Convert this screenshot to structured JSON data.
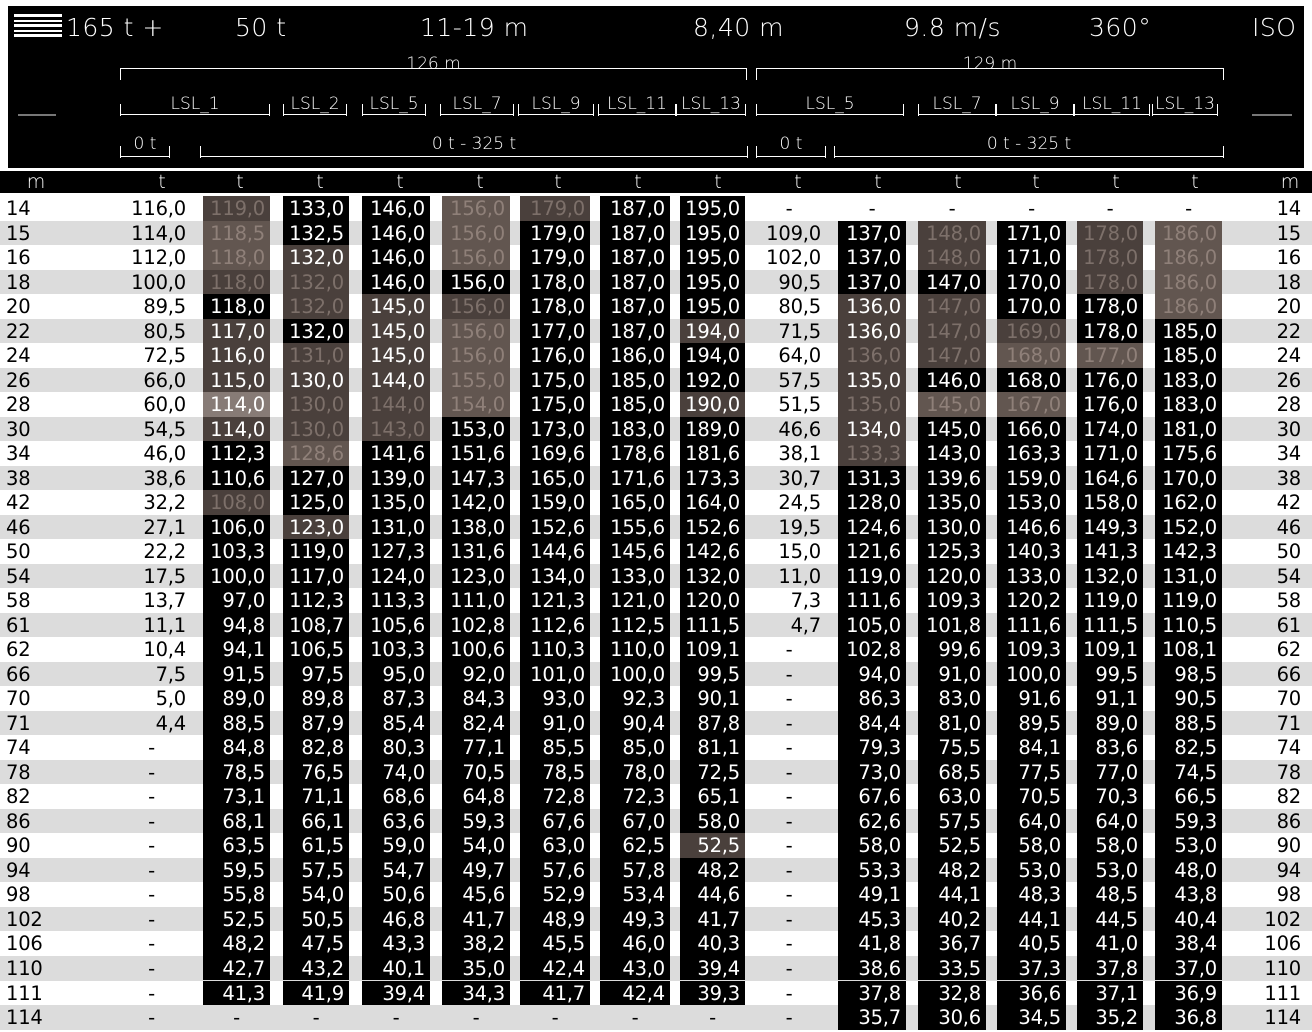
{
  "header": {
    "counterweight": "165 t +",
    "ballast": "50 t",
    "radius": "11-19 m",
    "width": "8,40 m",
    "wind": "9.8 m/s",
    "slew": "360°",
    "standard": "ISO"
  },
  "config": {
    "groups": [
      {
        "length": "126 m",
        "sections": [
          "LSL_1",
          "LSL_2",
          "LSL_5",
          "LSL_7",
          "LSL_9",
          "LSL_11",
          "LSL_13"
        ],
        "loads": [
          "0 t",
          "0 t - 325 t"
        ]
      },
      {
        "length": "129 m",
        "sections": [
          "LSL_5",
          "LSL_7",
          "LSL_9",
          "LSL_11",
          "LSL_13"
        ],
        "loads": [
          "0 t",
          "0 t - 325 t"
        ]
      }
    ]
  },
  "units": [
    "m",
    "t",
    "t",
    "t",
    "t",
    "t",
    "t",
    "t",
    "t",
    "t",
    "t",
    "t",
    "t",
    "t",
    "t",
    "m"
  ],
  "rows": [
    [
      "14",
      "116,0",
      "119,0",
      "133,0",
      "146,0",
      "156,0",
      "179,0",
      "187,0",
      "195,0",
      "-",
      "-",
      "-",
      "-",
      "-",
      "-",
      "14"
    ],
    [
      "15",
      "114,0",
      "118,5",
      "132,5",
      "146,0",
      "156,0",
      "179,0",
      "187,0",
      "195,0",
      "109,0",
      "137,0",
      "148,0",
      "171,0",
      "178,0",
      "186,0",
      "15"
    ],
    [
      "16",
      "112,0",
      "118,0",
      "132,0",
      "146,0",
      "156,0",
      "179,0",
      "187,0",
      "195,0",
      "102,0",
      "137,0",
      "148,0",
      "171,0",
      "178,0",
      "186,0",
      "16"
    ],
    [
      "18",
      "100,0",
      "118,0",
      "132,0",
      "146,0",
      "156,0",
      "178,0",
      "187,0",
      "195,0",
      "90,5",
      "137,0",
      "147,0",
      "170,0",
      "178,0",
      "186,0",
      "18"
    ],
    [
      "20",
      "89,5",
      "118,0",
      "132,0",
      "145,0",
      "156,0",
      "178,0",
      "187,0",
      "195,0",
      "80,5",
      "136,0",
      "147,0",
      "170,0",
      "178,0",
      "186,0",
      "20"
    ],
    [
      "22",
      "80,5",
      "117,0",
      "132,0",
      "145,0",
      "156,0",
      "177,0",
      "187,0",
      "194,0",
      "71,5",
      "136,0",
      "147,0",
      "169,0",
      "178,0",
      "185,0",
      "22"
    ],
    [
      "24",
      "72,5",
      "116,0",
      "131,0",
      "145,0",
      "156,0",
      "176,0",
      "186,0",
      "194,0",
      "64,0",
      "136,0",
      "147,0",
      "168,0",
      "177,0",
      "185,0",
      "24"
    ],
    [
      "26",
      "66,0",
      "115,0",
      "130,0",
      "144,0",
      "155,0",
      "175,0",
      "185,0",
      "192,0",
      "57,5",
      "135,0",
      "146,0",
      "168,0",
      "176,0",
      "183,0",
      "26"
    ],
    [
      "28",
      "60,0",
      "114,0",
      "130,0",
      "144,0",
      "154,0",
      "175,0",
      "185,0",
      "190,0",
      "51,5",
      "135,0",
      "145,0",
      "167,0",
      "176,0",
      "183,0",
      "28"
    ],
    [
      "30",
      "54,5",
      "114,0",
      "130,0",
      "143,0",
      "153,0",
      "173,0",
      "183,0",
      "189,0",
      "46,6",
      "134,0",
      "145,0",
      "166,0",
      "174,0",
      "181,0",
      "30"
    ],
    [
      "34",
      "46,0",
      "112,3",
      "128,6",
      "141,6",
      "151,6",
      "169,6",
      "178,6",
      "181,6",
      "38,1",
      "133,3",
      "143,0",
      "163,3",
      "171,0",
      "175,6",
      "34"
    ],
    [
      "38",
      "38,6",
      "110,6",
      "127,0",
      "139,0",
      "147,3",
      "165,0",
      "171,6",
      "173,3",
      "30,7",
      "131,3",
      "139,6",
      "159,0",
      "164,6",
      "170,0",
      "38"
    ],
    [
      "42",
      "32,2",
      "108,0",
      "125,0",
      "135,0",
      "142,0",
      "159,0",
      "165,0",
      "164,0",
      "24,5",
      "128,0",
      "135,0",
      "153,0",
      "158,0",
      "162,0",
      "42"
    ],
    [
      "46",
      "27,1",
      "106,0",
      "123,0",
      "131,0",
      "138,0",
      "152,6",
      "155,6",
      "152,6",
      "19,5",
      "124,6",
      "130,0",
      "146,6",
      "149,3",
      "152,0",
      "46"
    ],
    [
      "50",
      "22,2",
      "103,3",
      "119,0",
      "127,3",
      "131,6",
      "144,6",
      "145,6",
      "142,6",
      "15,0",
      "121,6",
      "125,3",
      "140,3",
      "141,3",
      "142,3",
      "50"
    ],
    [
      "54",
      "17,5",
      "100,0",
      "117,0",
      "124,0",
      "123,0",
      "134,0",
      "133,0",
      "132,0",
      "11,0",
      "119,0",
      "120,0",
      "133,0",
      "132,0",
      "131,0",
      "54"
    ],
    [
      "58",
      "13,7",
      "97,0",
      "112,3",
      "113,3",
      "111,0",
      "121,3",
      "121,0",
      "120,0",
      "7,3",
      "111,6",
      "109,3",
      "120,2",
      "119,0",
      "119,0",
      "58"
    ],
    [
      "61",
      "11,1",
      "94,8",
      "108,7",
      "105,6",
      "102,8",
      "112,6",
      "112,5",
      "111,5",
      "4,7",
      "105,0",
      "101,8",
      "111,6",
      "111,5",
      "110,5",
      "61"
    ],
    [
      "62",
      "10,4",
      "94,1",
      "106,5",
      "103,3",
      "100,6",
      "110,3",
      "110,0",
      "109,1",
      "-",
      "102,8",
      "99,6",
      "109,3",
      "109,1",
      "108,1",
      "62"
    ],
    [
      "66",
      "7,5",
      "91,5",
      "97,5",
      "95,0",
      "92,0",
      "101,0",
      "100,0",
      "99,5",
      "-",
      "94,0",
      "91,0",
      "100,0",
      "99,5",
      "98,5",
      "66"
    ],
    [
      "70",
      "5,0",
      "89,0",
      "89,8",
      "87,3",
      "84,3",
      "93,0",
      "92,3",
      "90,1",
      "-",
      "86,3",
      "83,0",
      "91,6",
      "91,1",
      "90,5",
      "70"
    ],
    [
      "71",
      "4,4",
      "88,5",
      "87,9",
      "85,4",
      "82,4",
      "91,0",
      "90,4",
      "87,8",
      "-",
      "84,4",
      "81,0",
      "89,5",
      "89,0",
      "88,5",
      "71"
    ],
    [
      "74",
      "-",
      "84,8",
      "82,8",
      "80,3",
      "77,1",
      "85,5",
      "85,0",
      "81,1",
      "-",
      "79,3",
      "75,5",
      "84,1",
      "83,6",
      "82,5",
      "74"
    ],
    [
      "78",
      "-",
      "78,5",
      "76,5",
      "74,0",
      "70,5",
      "78,5",
      "78,0",
      "72,5",
      "-",
      "73,0",
      "68,5",
      "77,5",
      "77,0",
      "74,5",
      "78"
    ],
    [
      "82",
      "-",
      "73,1",
      "71,1",
      "68,6",
      "64,8",
      "72,8",
      "72,3",
      "65,1",
      "-",
      "67,6",
      "63,0",
      "70,5",
      "70,3",
      "66,5",
      "82"
    ],
    [
      "86",
      "-",
      "68,1",
      "66,1",
      "63,6",
      "59,3",
      "67,6",
      "67,0",
      "58,0",
      "-",
      "62,6",
      "57,5",
      "64,0",
      "64,0",
      "59,3",
      "86"
    ],
    [
      "90",
      "-",
      "63,5",
      "61,5",
      "59,0",
      "54,0",
      "63,0",
      "62,5",
      "52,5",
      "-",
      "58,0",
      "52,5",
      "58,0",
      "58,0",
      "53,0",
      "90"
    ],
    [
      "94",
      "-",
      "59,5",
      "57,5",
      "54,7",
      "49,7",
      "57,6",
      "57,8",
      "48,2",
      "-",
      "53,3",
      "48,2",
      "53,0",
      "53,0",
      "48,0",
      "94"
    ],
    [
      "98",
      "-",
      "55,8",
      "54,0",
      "50,6",
      "45,6",
      "52,9",
      "53,4",
      "44,6",
      "-",
      "49,1",
      "44,1",
      "48,3",
      "48,5",
      "43,8",
      "98"
    ],
    [
      "102",
      "-",
      "52,5",
      "50,5",
      "46,8",
      "41,7",
      "48,9",
      "49,3",
      "41,7",
      "-",
      "45,3",
      "40,2",
      "44,1",
      "44,5",
      "40,4",
      "102"
    ],
    [
      "106",
      "-",
      "48,2",
      "47,5",
      "43,3",
      "38,2",
      "45,5",
      "46,0",
      "40,3",
      "-",
      "41,8",
      "36,7",
      "40,5",
      "41,0",
      "38,4",
      "106"
    ],
    [
      "110",
      "-",
      "42,7",
      "43,2",
      "40,1",
      "35,0",
      "42,4",
      "43,0",
      "39,4",
      "-",
      "38,6",
      "33,5",
      "37,3",
      "37,8",
      "37,0",
      "110"
    ],
    [
      "111",
      "-",
      "41,3",
      "41,9",
      "39,4",
      "34,3",
      "41,7",
      "42,4",
      "39,3",
      "-",
      "37,8",
      "32,8",
      "36,6",
      "37,1",
      "36,9",
      "111"
    ],
    [
      "114",
      "-",
      "-",
      "-",
      "-",
      "-",
      "-",
      "-",
      "-",
      "-",
      "35,7",
      "30,6",
      "34,5",
      "35,2",
      "36,8",
      "114"
    ]
  ],
  "cell_shades": {
    "0": [
      "b1",
      "k",
      "k",
      "b2",
      "b1",
      "k",
      "k",
      "n",
      "n",
      "n",
      "n",
      "n",
      "n"
    ],
    "1": [
      "b2",
      "k",
      "k",
      "b2",
      "k",
      "k",
      "k",
      "k",
      "b1",
      "k",
      "b1",
      "b2",
      "k"
    ],
    "2": [
      "b2",
      "hl",
      "k",
      "b2",
      "k",
      "k",
      "k",
      "k",
      "b1",
      "k",
      "b1",
      "b2",
      "k"
    ],
    "3": [
      "b1",
      "b1",
      "k",
      "k",
      "k",
      "k",
      "k",
      "k",
      "k",
      "k",
      "b1",
      "b2",
      "k"
    ],
    "4": [
      "k",
      "b1",
      "hl",
      "b1",
      "k",
      "k",
      "k",
      "hl",
      "b1",
      "k",
      "k",
      "b2",
      "k"
    ],
    "5": [
      "hl",
      "k",
      "hl",
      "b2",
      "k",
      "k",
      "hl",
      "hl",
      "b1",
      "b1",
      "k",
      "k",
      "hl"
    ],
    "6": [
      "hl",
      "b1",
      "hl",
      "b2",
      "k",
      "k",
      "k",
      "b1",
      "b1",
      "b2",
      "b2",
      "k",
      "k"
    ],
    "7": [
      "hl",
      "hl",
      "hl",
      "b2",
      "k",
      "k",
      "k",
      "hl",
      "k",
      "k",
      "k",
      "k",
      "k"
    ],
    "8": [
      "hl3",
      "b1",
      "b1",
      "b2",
      "k",
      "k",
      "hl",
      "b1",
      "b2",
      "b2",
      "k",
      "k",
      "k"
    ],
    "9": [
      "hl",
      "b1",
      "b1",
      "k",
      "k",
      "k",
      "k",
      "hl",
      "k",
      "k",
      "k",
      "k",
      "k"
    ],
    "10": [
      "k",
      "b2",
      "k",
      "k",
      "k",
      "k",
      "k",
      "b1",
      "k",
      "k",
      "k",
      "k",
      "k"
    ],
    "11": [
      "k",
      "k",
      "k",
      "k",
      "k",
      "k",
      "k",
      "k",
      "k",
      "k",
      "k",
      "k",
      "k"
    ],
    "12": [
      "b1",
      "k",
      "k",
      "k",
      "k",
      "k",
      "k",
      "k",
      "k",
      "k",
      "k",
      "k",
      "k"
    ],
    "13": [
      "k",
      "hl",
      "k",
      "k",
      "k",
      "k",
      "k",
      "k",
      "k",
      "k",
      "k",
      "k",
      "k"
    ],
    "26": [
      "k",
      "k",
      "k",
      "k",
      "k",
      "k",
      "hl",
      "k",
      "k",
      "k",
      "k",
      "k",
      "k"
    ]
  }
}
